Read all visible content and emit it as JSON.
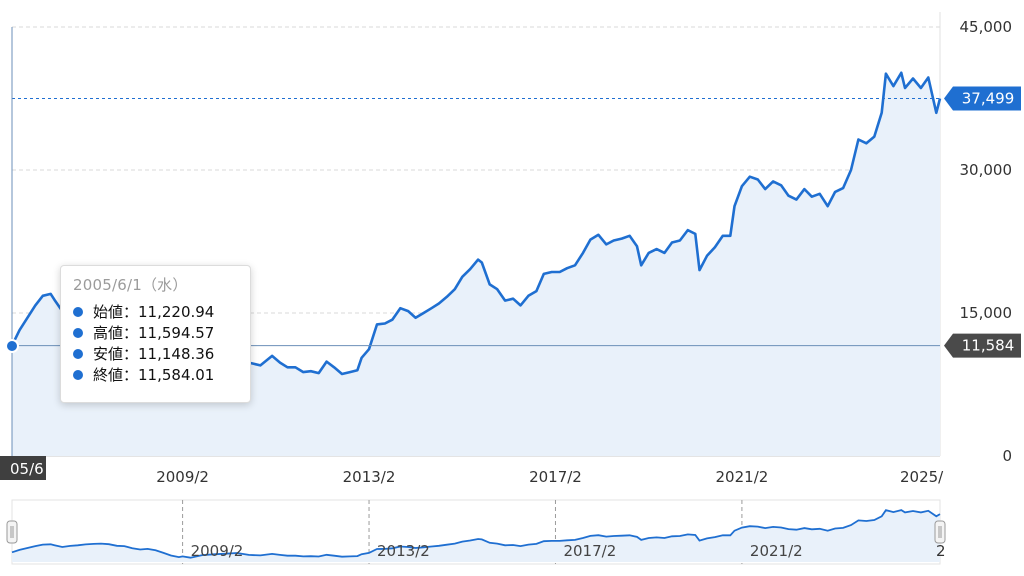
{
  "chart_data": {
    "type": "area",
    "y_ticks": [
      "45,000",
      "30,000",
      "15,000",
      "0"
    ],
    "ylim": [
      0,
      45000
    ],
    "xlim": [
      2005.42,
      2025.33
    ],
    "x_ticks": [
      {
        "x": 2009.08,
        "label": "2009/2"
      },
      {
        "x": 2013.08,
        "label": "2013/2"
      },
      {
        "x": 2017.08,
        "label": "2017/2"
      },
      {
        "x": 2021.08,
        "label": "2021/2"
      }
    ],
    "x_start_label": "05/6",
    "x_end_label": "2025/",
    "nav_end_label": "2",
    "grid": true,
    "last_price": {
      "value": 37499,
      "label": "37,499"
    },
    "cursor_price": {
      "value": 11584,
      "label": "11,584"
    },
    "series": [
      {
        "x": [
          2005.42,
          2005.58,
          2005.75,
          2005.92,
          2006.08,
          2006.25,
          2006.33,
          2006.5,
          2006.67,
          2006.83,
          2007.0,
          2007.17,
          2007.33,
          2007.5,
          2007.67,
          2007.83,
          2008.0,
          2008.17,
          2008.33,
          2008.5,
          2008.67,
          2008.83,
          2009.0,
          2009.08,
          2009.25,
          2009.5,
          2009.75,
          2010.0,
          2010.25,
          2010.5,
          2010.75,
          2011.0,
          2011.17,
          2011.33,
          2011.5,
          2011.67,
          2011.83,
          2012.0,
          2012.17,
          2012.33,
          2012.5,
          2012.67,
          2012.83,
          2012.92,
          2013.08,
          2013.25,
          2013.42,
          2013.58,
          2013.75,
          2013.92,
          2014.08,
          2014.25,
          2014.42,
          2014.58,
          2014.75,
          2014.92,
          2015.08,
          2015.25,
          2015.42,
          2015.5,
          2015.67,
          2015.83,
          2016.0,
          2016.17,
          2016.33,
          2016.5,
          2016.67,
          2016.83,
          2017.0,
          2017.17,
          2017.33,
          2017.5,
          2017.67,
          2017.83,
          2018.0,
          2018.17,
          2018.33,
          2018.5,
          2018.67,
          2018.83,
          2018.92,
          2019.08,
          2019.25,
          2019.42,
          2019.58,
          2019.75,
          2019.92,
          2020.08,
          2020.17,
          2020.33,
          2020.5,
          2020.67,
          2020.83,
          2020.92,
          2021.08,
          2021.25,
          2021.42,
          2021.58,
          2021.75,
          2021.92,
          2022.08,
          2022.25,
          2022.42,
          2022.58,
          2022.75,
          2022.92,
          2023.08,
          2023.25,
          2023.42,
          2023.58,
          2023.75,
          2023.92,
          2024.08,
          2024.17,
          2024.33,
          2024.5,
          2024.58,
          2024.75,
          2024.92,
          2025.08,
          2025.25,
          2025.33
        ],
        "values": [
          11584,
          13200,
          14500,
          15800,
          16800,
          17000,
          16400,
          15200,
          15900,
          16300,
          16900,
          17300,
          17500,
          17100,
          16000,
          15800,
          14300,
          13500,
          13900,
          12900,
          11200,
          9400,
          8300,
          8800,
          7900,
          9700,
          10200,
          10600,
          11100,
          9800,
          9500,
          10500,
          9800,
          9300,
          9300,
          8800,
          8900,
          8700,
          9900,
          9300,
          8600,
          8800,
          9000,
          10300,
          11200,
          13800,
          13900,
          14300,
          15500,
          15200,
          14500,
          15000,
          15500,
          16000,
          16700,
          17500,
          18800,
          19600,
          20600,
          20300,
          18000,
          17500,
          16300,
          16500,
          15800,
          16800,
          17300,
          19100,
          19300,
          19300,
          19700,
          20000,
          21300,
          22700,
          23200,
          22200,
          22600,
          22800,
          23100,
          22000,
          20000,
          21300,
          21700,
          21300,
          22400,
          22600,
          23700,
          23300,
          19500,
          21000,
          21900,
          23100,
          23100,
          26200,
          28300,
          29300,
          29000,
          28000,
          28800,
          28400,
          27300,
          26900,
          28000,
          27200,
          27500,
          26200,
          27700,
          28100,
          30000,
          33200,
          32800,
          33500,
          36000,
          40100,
          38800,
          40200,
          38600,
          39600,
          38600,
          39700,
          36000,
          37499
        ]
      }
    ]
  },
  "tooltip": {
    "date": "2005/6/1（水）",
    "rows": [
      {
        "label": "始値",
        "value": "11,220.94",
        "text": "始値：11,220.94"
      },
      {
        "label": "高値",
        "value": "11,594.57",
        "text": "高値：11,594.57"
      },
      {
        "label": "安値",
        "value": "11,148.36",
        "text": "安値：11,148.36"
      },
      {
        "label": "終値",
        "value": "11,584.01",
        "text": "終値：11,584.01"
      }
    ]
  },
  "colors": {
    "line": "#1f6fd1",
    "fill": "#e9f1fa",
    "grid": "#d9d9d9",
    "axis_text": "#333333",
    "last_tag": "#1f6fd1",
    "cursor_tag": "#4a4a4a"
  }
}
